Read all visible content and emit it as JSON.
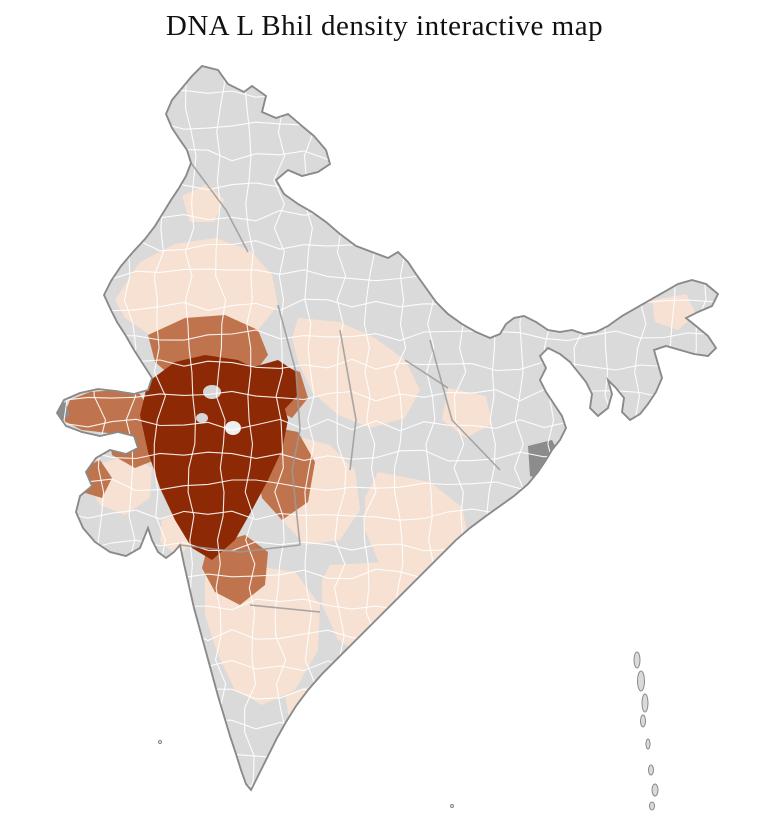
{
  "page": {
    "title": "DNA L Bhil density interactive map"
  },
  "map": {
    "colors": {
      "background": "#ffffff",
      "no_data": "#dadada",
      "low": "#f6e1d2",
      "medium": "#c0744d",
      "high": "#8e2906",
      "dark_gray": "#8c8c8c",
      "hole_gray": "#d6d6d6",
      "hole_light": "#eeeeee",
      "outline": "#8a8a8a",
      "district_line": "#ffffff"
    }
  }
}
